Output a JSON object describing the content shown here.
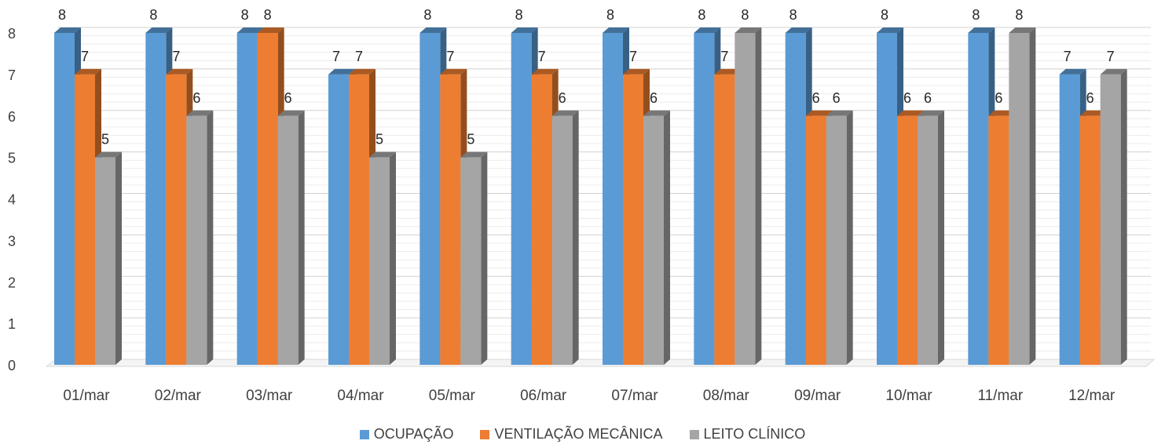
{
  "chart_data": {
    "type": "bar",
    "categories": [
      "01/mar",
      "02/mar",
      "03/mar",
      "04/mar",
      "05/mar",
      "06/mar",
      "07/mar",
      "08/mar",
      "09/mar",
      "10/mar",
      "11/mar",
      "12/mar"
    ],
    "series": [
      {
        "name": "OCUPAÇÃO",
        "color": "#5b9bd5",
        "values": [
          8,
          8,
          8,
          7,
          8,
          8,
          8,
          8,
          8,
          8,
          8,
          7
        ]
      },
      {
        "name": "VENTILAÇÃO MECÂNICA",
        "color": "#ed7d31",
        "values": [
          7,
          7,
          8,
          7,
          7,
          7,
          7,
          7,
          6,
          6,
          6,
          6
        ]
      },
      {
        "name": "LEITO CLÍNICO",
        "color": "#a5a5a5",
        "values": [
          5,
          6,
          6,
          5,
          5,
          6,
          6,
          8,
          6,
          6,
          8,
          7
        ]
      }
    ],
    "ylim": [
      0,
      8
    ],
    "yticks": [
      0,
      1,
      2,
      3,
      4,
      5,
      6,
      7,
      8
    ],
    "legend_position": "bottom",
    "grid": true,
    "style": "3d-clustered-column"
  }
}
